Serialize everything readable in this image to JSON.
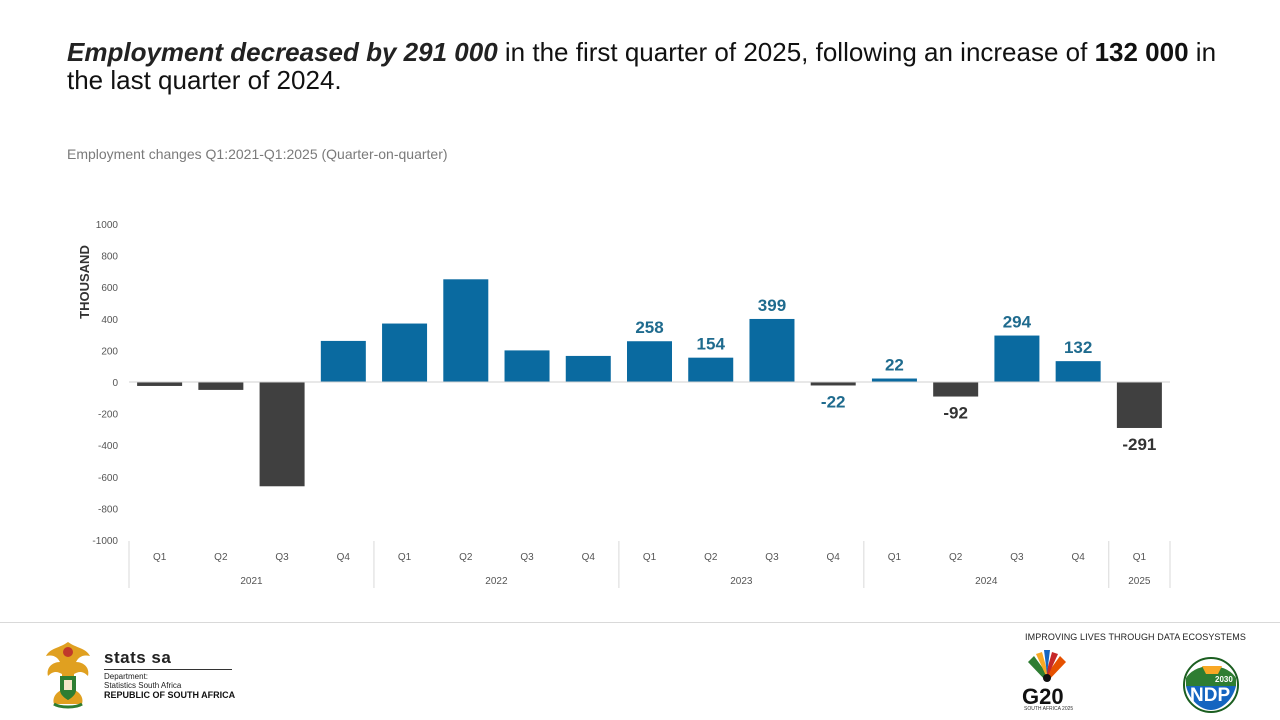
{
  "headline": {
    "part1": "Employment decreased by 291 000",
    "part2": " in the first quarter of 2025, following an increase of ",
    "part3": "132 000",
    "part4": " in the last quarter of 2024."
  },
  "subtitle": "Employment changes  Q1:2021-Q1:2025  (Quarter-on-quarter)",
  "chart_data": {
    "type": "bar",
    "title": "Employment changes  Q1:2021-Q1:2025  (Quarter-on-quarter)",
    "ylabel": "THOUSAND",
    "xlabel": "",
    "ylim": [
      -1000,
      1000
    ],
    "yticks": [
      1000,
      800,
      600,
      400,
      200,
      0,
      -200,
      -400,
      -600,
      -800,
      -1000
    ],
    "categories": [
      "Q1",
      "Q2",
      "Q3",
      "Q4",
      "Q1",
      "Q2",
      "Q3",
      "Q4",
      "Q1",
      "Q2",
      "Q3",
      "Q4",
      "Q1",
      "Q2",
      "Q3",
      "Q4",
      "Q1"
    ],
    "years": [
      {
        "label": "2021",
        "start": 0,
        "count": 4
      },
      {
        "label": "2022",
        "start": 4,
        "count": 4
      },
      {
        "label": "2023",
        "start": 8,
        "count": 4
      },
      {
        "label": "2024",
        "start": 12,
        "count": 4
      },
      {
        "label": "2025",
        "start": 16,
        "count": 1
      }
    ],
    "values": [
      -25,
      -50,
      -660,
      260,
      370,
      650,
      200,
      165,
      258,
      154,
      399,
      -22,
      22,
      -92,
      294,
      132,
      -291
    ],
    "data_labels": [
      "",
      "",
      "",
      "",
      "",
      "",
      "",
      "",
      "258",
      "154",
      "399",
      "-22",
      "22",
      "-92",
      "294",
      "132",
      "-291"
    ],
    "label_colors": [
      "",
      "",
      "",
      "",
      "",
      "",
      "",
      "",
      "#1f6b8e",
      "#1f6b8e",
      "#1f6b8e",
      "#1f6b8e",
      "#1f6b8e",
      "#333333",
      "#1f6b8e",
      "#1f6b8e",
      "#333333"
    ],
    "bar_colors": [
      "#404040",
      "#404040",
      "#404040",
      "#0a6aa0",
      "#0a6aa0",
      "#0a6aa0",
      "#0a6aa0",
      "#0a6aa0",
      "#0a6aa0",
      "#0a6aa0",
      "#0a6aa0",
      "#404040",
      "#0a6aa0",
      "#404040",
      "#0a6aa0",
      "#0a6aa0",
      "#404040"
    ]
  },
  "footer": {
    "org_name": "stats sa",
    "dept_line1": "Department:",
    "dept_line2": "Statistics South Africa",
    "country": "REPUBLIC OF SOUTH AFRICA",
    "tagline": "IMPROVING LIVES THROUGH DATA ECOSYSTEMS",
    "g20_label": "G20",
    "g20_sub": "SOUTH AFRICA 2025",
    "ndp_label": "NDP",
    "ndp_year": "2030"
  }
}
